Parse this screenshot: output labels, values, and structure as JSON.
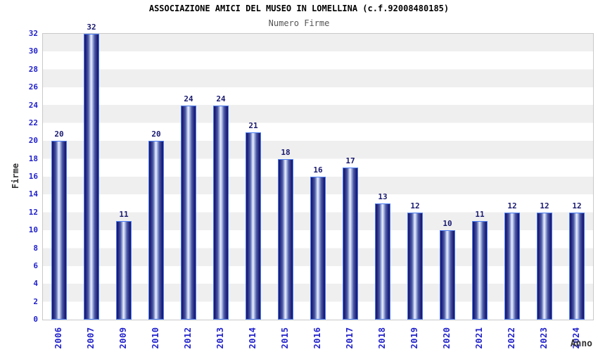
{
  "header": {
    "title": "ASSOCIAZIONE AMICI DEL MUSEO IN LOMELLINA (c.f.92008480185)",
    "subtitle": "Numero Firme"
  },
  "chart_data": {
    "type": "bar",
    "title": "ASSOCIAZIONE AMICI DEL MUSEO IN LOMELLINA (c.f.92008480185)",
    "subtitle": "Numero Firme",
    "xlabel": "Anno",
    "ylabel": "Firme",
    "categories": [
      "2006",
      "2007",
      "2009",
      "2010",
      "2012",
      "2013",
      "2014",
      "2015",
      "2016",
      "2017",
      "2018",
      "2019",
      "2020",
      "2021",
      "2022",
      "2023",
      "2024"
    ],
    "values": [
      20,
      32,
      11,
      20,
      24,
      24,
      21,
      18,
      16,
      17,
      13,
      12,
      10,
      11,
      12,
      12,
      12
    ],
    "ylim": [
      0,
      32
    ],
    "ytick_step": 2,
    "grid": "alternating-horizontal-bands",
    "legend_position": "none",
    "colors": {
      "bar_dark": "#15166b",
      "bar_light": "#eef1fb",
      "bar_border": "#4d7ef2",
      "tick_label": "#2222cc",
      "value_label": "#191970",
      "band_gray": "#efefef",
      "band_white": "#ffffff",
      "plot_border": "#c9c9c9",
      "title_color": "#000000",
      "subtitle_color": "#555555",
      "axis_title_color": "#333333"
    }
  }
}
